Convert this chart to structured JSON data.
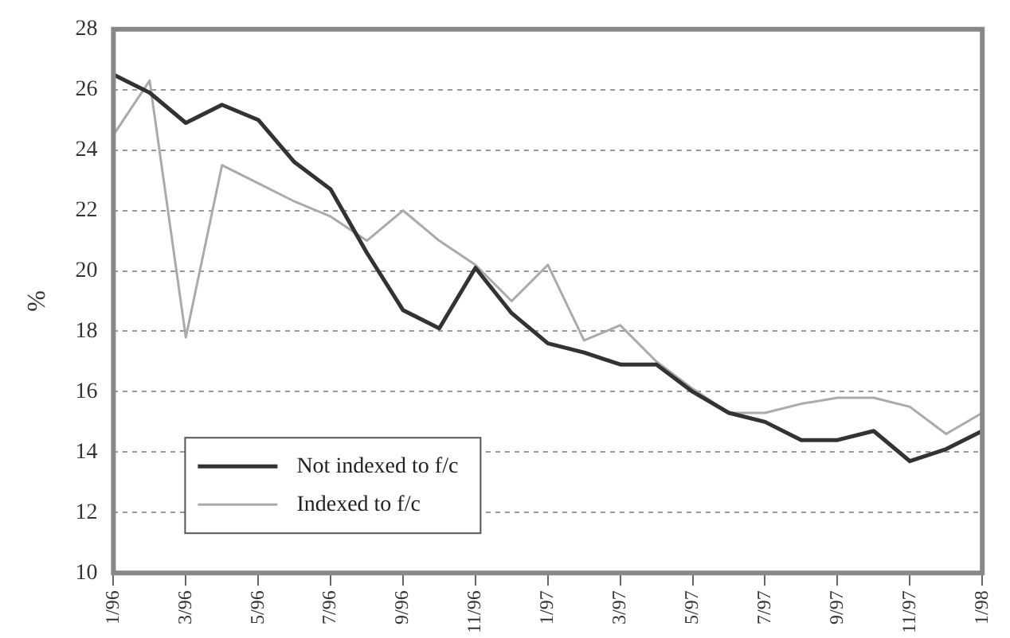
{
  "chart_data": {
    "type": "line",
    "ylabel": "%",
    "categories": [
      "1/96",
      null,
      "3/96",
      null,
      "5/96",
      null,
      "7/96",
      null,
      "9/96",
      null,
      "11/96",
      null,
      "1/97",
      null,
      "3/97",
      null,
      "5/97",
      null,
      "7/97",
      null,
      "9/97",
      null,
      "11/97",
      null,
      "1/98"
    ],
    "series": [
      {
        "name": "Not indexed to f/c",
        "color": "#333333",
        "values": [
          26.5,
          25.9,
          24.9,
          25.5,
          25.0,
          23.6,
          22.7,
          20.6,
          18.7,
          18.1,
          20.1,
          18.6,
          17.6,
          17.3,
          16.9,
          16.9,
          16.0,
          15.3,
          15.0,
          14.4,
          14.4,
          14.7,
          13.7,
          14.1,
          14.7
        ]
      },
      {
        "name": "Indexed to f/c",
        "color": "#aaaaaa",
        "values": [
          24.5,
          26.3,
          17.8,
          23.5,
          22.9,
          22.3,
          21.8,
          21.0,
          22.0,
          21.0,
          20.2,
          19.0,
          20.2,
          17.7,
          18.2,
          17.0,
          16.1,
          15.3,
          15.3,
          15.6,
          15.8,
          15.8,
          15.5,
          14.6,
          15.3
        ]
      }
    ],
    "ylim": [
      10,
      28
    ],
    "yticks": [
      10,
      12,
      14,
      16,
      18,
      20,
      22,
      24,
      26,
      28
    ],
    "grid": "y",
    "legend": "bottom left",
    "marker": "none",
    "line_style": "solid"
  }
}
